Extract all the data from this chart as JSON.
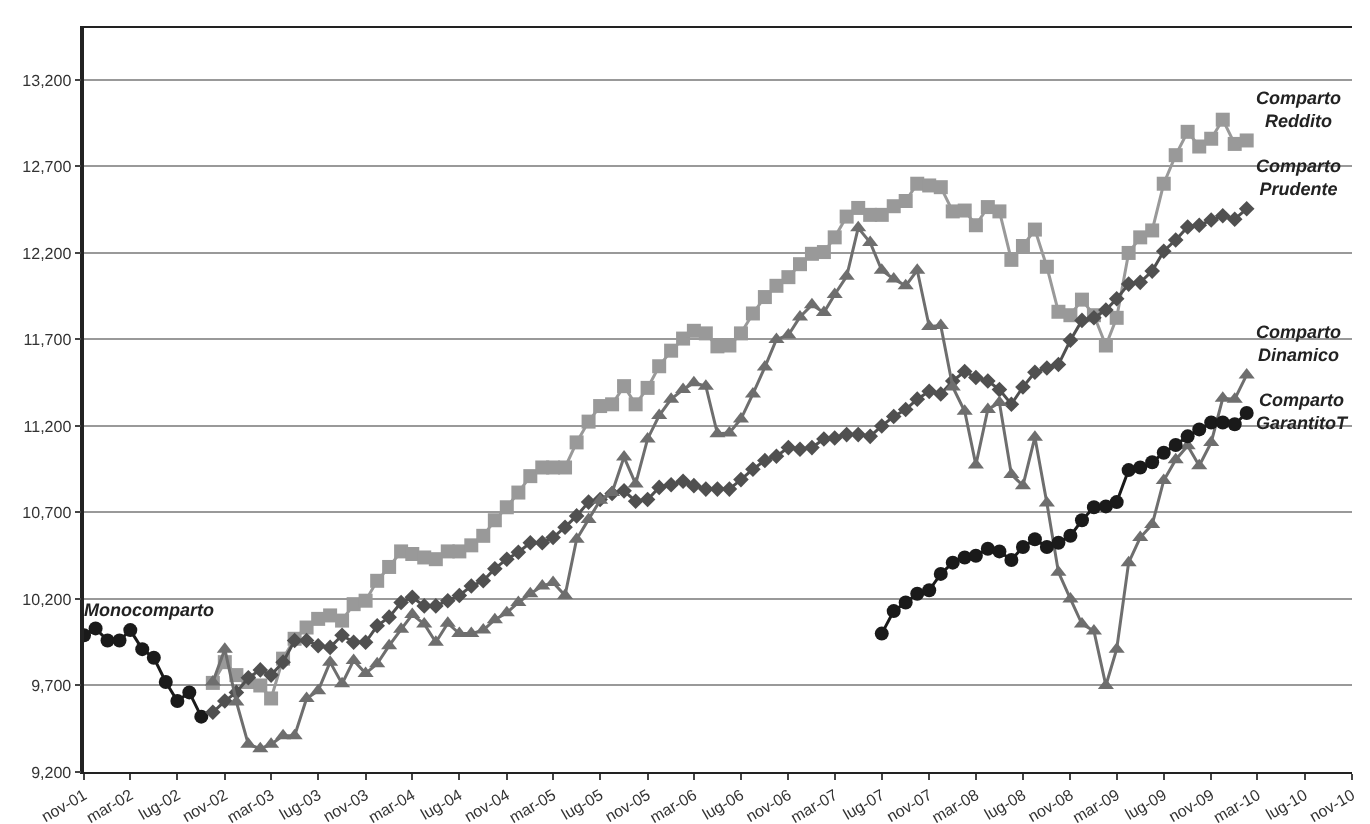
{
  "chart_data": {
    "type": "line",
    "x": [
      "2001-11",
      "2001-12",
      "2002-01",
      "2002-02",
      "2002-03",
      "2002-04",
      "2002-05",
      "2002-06",
      "2002-07",
      "2002-08",
      "2002-09",
      "2002-10",
      "2002-11",
      "2002-12",
      "2003-01",
      "2003-02",
      "2003-03",
      "2003-04",
      "2003-05",
      "2003-06",
      "2003-07",
      "2003-08",
      "2003-09",
      "2003-10",
      "2003-11",
      "2003-12",
      "2004-01",
      "2004-02",
      "2004-03",
      "2004-04",
      "2004-05",
      "2004-06",
      "2004-07",
      "2004-08",
      "2004-09",
      "2004-10",
      "2004-11",
      "2004-12",
      "2005-01",
      "2005-02",
      "2005-03",
      "2005-04",
      "2005-05",
      "2005-06",
      "2005-07",
      "2005-08",
      "2005-09",
      "2005-10",
      "2005-11",
      "2005-12",
      "2006-01",
      "2006-02",
      "2006-03",
      "2006-04",
      "2006-05",
      "2006-06",
      "2006-07",
      "2006-08",
      "2006-09",
      "2006-10",
      "2006-11",
      "2006-12",
      "2007-01",
      "2007-02",
      "2007-03",
      "2007-04",
      "2007-05",
      "2007-06",
      "2007-07",
      "2007-08",
      "2007-09",
      "2007-10",
      "2007-11",
      "2007-12",
      "2008-01",
      "2008-02",
      "2008-03",
      "2008-04",
      "2008-05",
      "2008-06",
      "2008-07",
      "2008-08",
      "2008-09",
      "2008-10",
      "2008-11",
      "2008-12",
      "2009-01",
      "2009-02",
      "2009-03",
      "2009-04",
      "2009-05",
      "2009-06",
      "2009-07",
      "2009-08",
      "2009-09",
      "2009-10",
      "2009-11",
      "2009-12",
      "2010-01",
      "2010-02"
    ],
    "series": [
      {
        "name": "Monocomparto",
        "color": "#1a1a1a",
        "marker": "circle",
        "values": [
          9990,
          10030,
          9960,
          9960,
          10020,
          9910,
          9860,
          9720,
          9610,
          9660,
          9520,
          null,
          null,
          null,
          null,
          null,
          null,
          null,
          null,
          null,
          null,
          null,
          null,
          null,
          null,
          null,
          null,
          null,
          null,
          null,
          null,
          null,
          null,
          null,
          null,
          null,
          null,
          null,
          null,
          null,
          null,
          null,
          null,
          null,
          null,
          null,
          null,
          null,
          null,
          null,
          null,
          null,
          null,
          null,
          null,
          null,
          null,
          null,
          null,
          null,
          null,
          null,
          null,
          null,
          null,
          null,
          null,
          null,
          null,
          null,
          null,
          null,
          null,
          null,
          null,
          null,
          null,
          null,
          null,
          null,
          null,
          null,
          null,
          null,
          null,
          null,
          null,
          null,
          null,
          null,
          null,
          null,
          null,
          null,
          null,
          null,
          null,
          null,
          null,
          null
        ]
      },
      {
        "name": "Comparto Reddito",
        "color": "#999999",
        "marker": "square",
        "values": [
          null,
          null,
          null,
          null,
          null,
          null,
          null,
          null,
          null,
          null,
          null,
          9715,
          9835,
          9760,
          9720,
          9700,
          9625,
          9855,
          9970,
          10035,
          10085,
          10105,
          10075,
          10170,
          10190,
          10305,
          10385,
          10475,
          10460,
          10440,
          10430,
          10475,
          10475,
          10510,
          10565,
          10655,
          10730,
          10815,
          10910,
          10960,
          10960,
          10960,
          11105,
          11225,
          11315,
          11325,
          11430,
          11325,
          11420,
          11545,
          11635,
          11705,
          11750,
          11735,
          11660,
          11665,
          11735,
          11850,
          11945,
          12010,
          12060,
          12135,
          12195,
          12205,
          12290,
          12410,
          12460,
          12420,
          12420,
          12470,
          12500,
          12600,
          12590,
          12580,
          12440,
          12445,
          12360,
          12465,
          12440,
          12160,
          12240,
          12335,
          12120,
          11860,
          11840,
          11930,
          11840,
          11665,
          11825,
          12200,
          12290,
          12330,
          12600,
          12765,
          12900,
          12815,
          12860,
          12970,
          12830,
          12850
        ]
      },
      {
        "name": "Comparto Prudente",
        "color": "#505050",
        "marker": "diamond",
        "values": [
          null,
          null,
          null,
          null,
          null,
          null,
          null,
          null,
          null,
          null,
          null,
          9545,
          9610,
          9660,
          9745,
          9790,
          9760,
          9835,
          9960,
          9960,
          9930,
          9920,
          9990,
          9950,
          9950,
          10045,
          10095,
          10180,
          10210,
          10160,
          10160,
          10190,
          10220,
          10275,
          10305,
          10375,
          10430,
          10470,
          10525,
          10525,
          10555,
          10615,
          10680,
          10760,
          10775,
          10810,
          10825,
          10765,
          10775,
          10845,
          10860,
          10880,
          10855,
          10835,
          10835,
          10835,
          10890,
          10950,
          11000,
          11025,
          11075,
          11065,
          11075,
          11125,
          11130,
          11150,
          11150,
          11140,
          11200,
          11255,
          11295,
          11355,
          11400,
          11385,
          11460,
          11515,
          11480,
          11460,
          11410,
          11325,
          11425,
          11510,
          11535,
          11555,
          11695,
          11810,
          11825,
          11870,
          11935,
          12020,
          12030,
          12095,
          12210,
          12275,
          12350,
          12360,
          12390,
          12415,
          12395,
          12455
        ]
      },
      {
        "name": "Comparto Dinamico",
        "color": "#6e6e6e",
        "marker": "triangle",
        "values": [
          null,
          null,
          null,
          null,
          null,
          null,
          null,
          null,
          null,
          null,
          null,
          9720,
          9910,
          9605,
          9360,
          9335,
          9360,
          9410,
          9410,
          9625,
          9670,
          9835,
          9710,
          9845,
          9770,
          9825,
          9930,
          10025,
          10110,
          10055,
          9950,
          10060,
          10000,
          10000,
          10020,
          10080,
          10120,
          10180,
          10230,
          10275,
          10295,
          10220,
          10545,
          10660,
          10770,
          10815,
          11020,
          10865,
          11125,
          11260,
          11355,
          11410,
          11450,
          11430,
          11155,
          11160,
          11240,
          11385,
          11540,
          11700,
          11725,
          11830,
          11900,
          11855,
          11960,
          12065,
          12345,
          12260,
          12100,
          12050,
          12010,
          12100,
          11775,
          11780,
          11425,
          11285,
          10975,
          11295,
          11335,
          10920,
          10855,
          11135,
          10755,
          10355,
          10200,
          10055,
          10015,
          9700,
          9910,
          10410,
          10555,
          10630,
          10885,
          11005,
          11085,
          10970,
          11105,
          11360,
          11355,
          11495
        ]
      },
      {
        "name": "Comparto GarantitoT",
        "color": "#1a1a1a",
        "marker": "circle",
        "values": [
          null,
          null,
          null,
          null,
          null,
          null,
          null,
          null,
          null,
          null,
          null,
          null,
          null,
          null,
          null,
          null,
          null,
          null,
          null,
          null,
          null,
          null,
          null,
          null,
          null,
          null,
          null,
          null,
          null,
          null,
          null,
          null,
          null,
          null,
          null,
          null,
          null,
          null,
          null,
          null,
          null,
          null,
          null,
          null,
          null,
          null,
          null,
          null,
          null,
          null,
          null,
          null,
          null,
          null,
          null,
          null,
          null,
          null,
          null,
          null,
          null,
          null,
          null,
          null,
          null,
          null,
          null,
          null,
          10000,
          10130,
          10180,
          10230,
          10250,
          10345,
          10410,
          10440,
          10450,
          10490,
          10475,
          10425,
          10500,
          10545,
          10500,
          10525,
          10565,
          10655,
          10730,
          10735,
          10760,
          10945,
          10960,
          10990,
          11045,
          11090,
          11140,
          11180,
          11220,
          11220,
          11210,
          11275
        ]
      }
    ],
    "xlim": [
      "2001-11",
      "2010-11"
    ],
    "xticks": [
      {
        "value": "2001-11",
        "label": "nov-01"
      },
      {
        "value": "2002-03",
        "label": "mar-02"
      },
      {
        "value": "2002-07",
        "label": "lug-02"
      },
      {
        "value": "2002-11",
        "label": "nov-02"
      },
      {
        "value": "2003-03",
        "label": "mar-03"
      },
      {
        "value": "2003-07",
        "label": "lug-03"
      },
      {
        "value": "2003-11",
        "label": "nov-03"
      },
      {
        "value": "2004-03",
        "label": "mar-04"
      },
      {
        "value": "2004-07",
        "label": "lug-04"
      },
      {
        "value": "2004-11",
        "label": "nov-04"
      },
      {
        "value": "2005-03",
        "label": "mar-05"
      },
      {
        "value": "2005-07",
        "label": "lug-05"
      },
      {
        "value": "2005-11",
        "label": "nov-05"
      },
      {
        "value": "2006-03",
        "label": "mar-06"
      },
      {
        "value": "2006-07",
        "label": "lug-06"
      },
      {
        "value": "2006-11",
        "label": "nov-06"
      },
      {
        "value": "2007-03",
        "label": "mar-07"
      },
      {
        "value": "2007-07",
        "label": "lug-07"
      },
      {
        "value": "2007-11",
        "label": "nov-07"
      },
      {
        "value": "2008-03",
        "label": "mar-08"
      },
      {
        "value": "2008-07",
        "label": "lug-08"
      },
      {
        "value": "2008-11",
        "label": "nov-08"
      },
      {
        "value": "2009-03",
        "label": "mar-09"
      },
      {
        "value": "2009-07",
        "label": "lug-09"
      },
      {
        "value": "2009-11",
        "label": "nov-09"
      },
      {
        "value": "2010-03",
        "label": "mar-10"
      },
      {
        "value": "2010-07",
        "label": "lug-10"
      },
      {
        "value": "2010-11",
        "label": "nov-10"
      }
    ],
    "ylim": [
      9200,
      13500
    ],
    "yticks": [
      {
        "value": 9200,
        "label": "9,200"
      },
      {
        "value": 9700,
        "label": "9,700"
      },
      {
        "value": 10200,
        "label": "10,200"
      },
      {
        "value": 10700,
        "label": "10,700"
      },
      {
        "value": 11200,
        "label": "11,200"
      },
      {
        "value": 11700,
        "label": "11,700"
      },
      {
        "value": 12200,
        "label": "12,200"
      },
      {
        "value": 12700,
        "label": "12,700"
      },
      {
        "value": 13200,
        "label": "13,200"
      }
    ],
    "grid": "y"
  }
}
